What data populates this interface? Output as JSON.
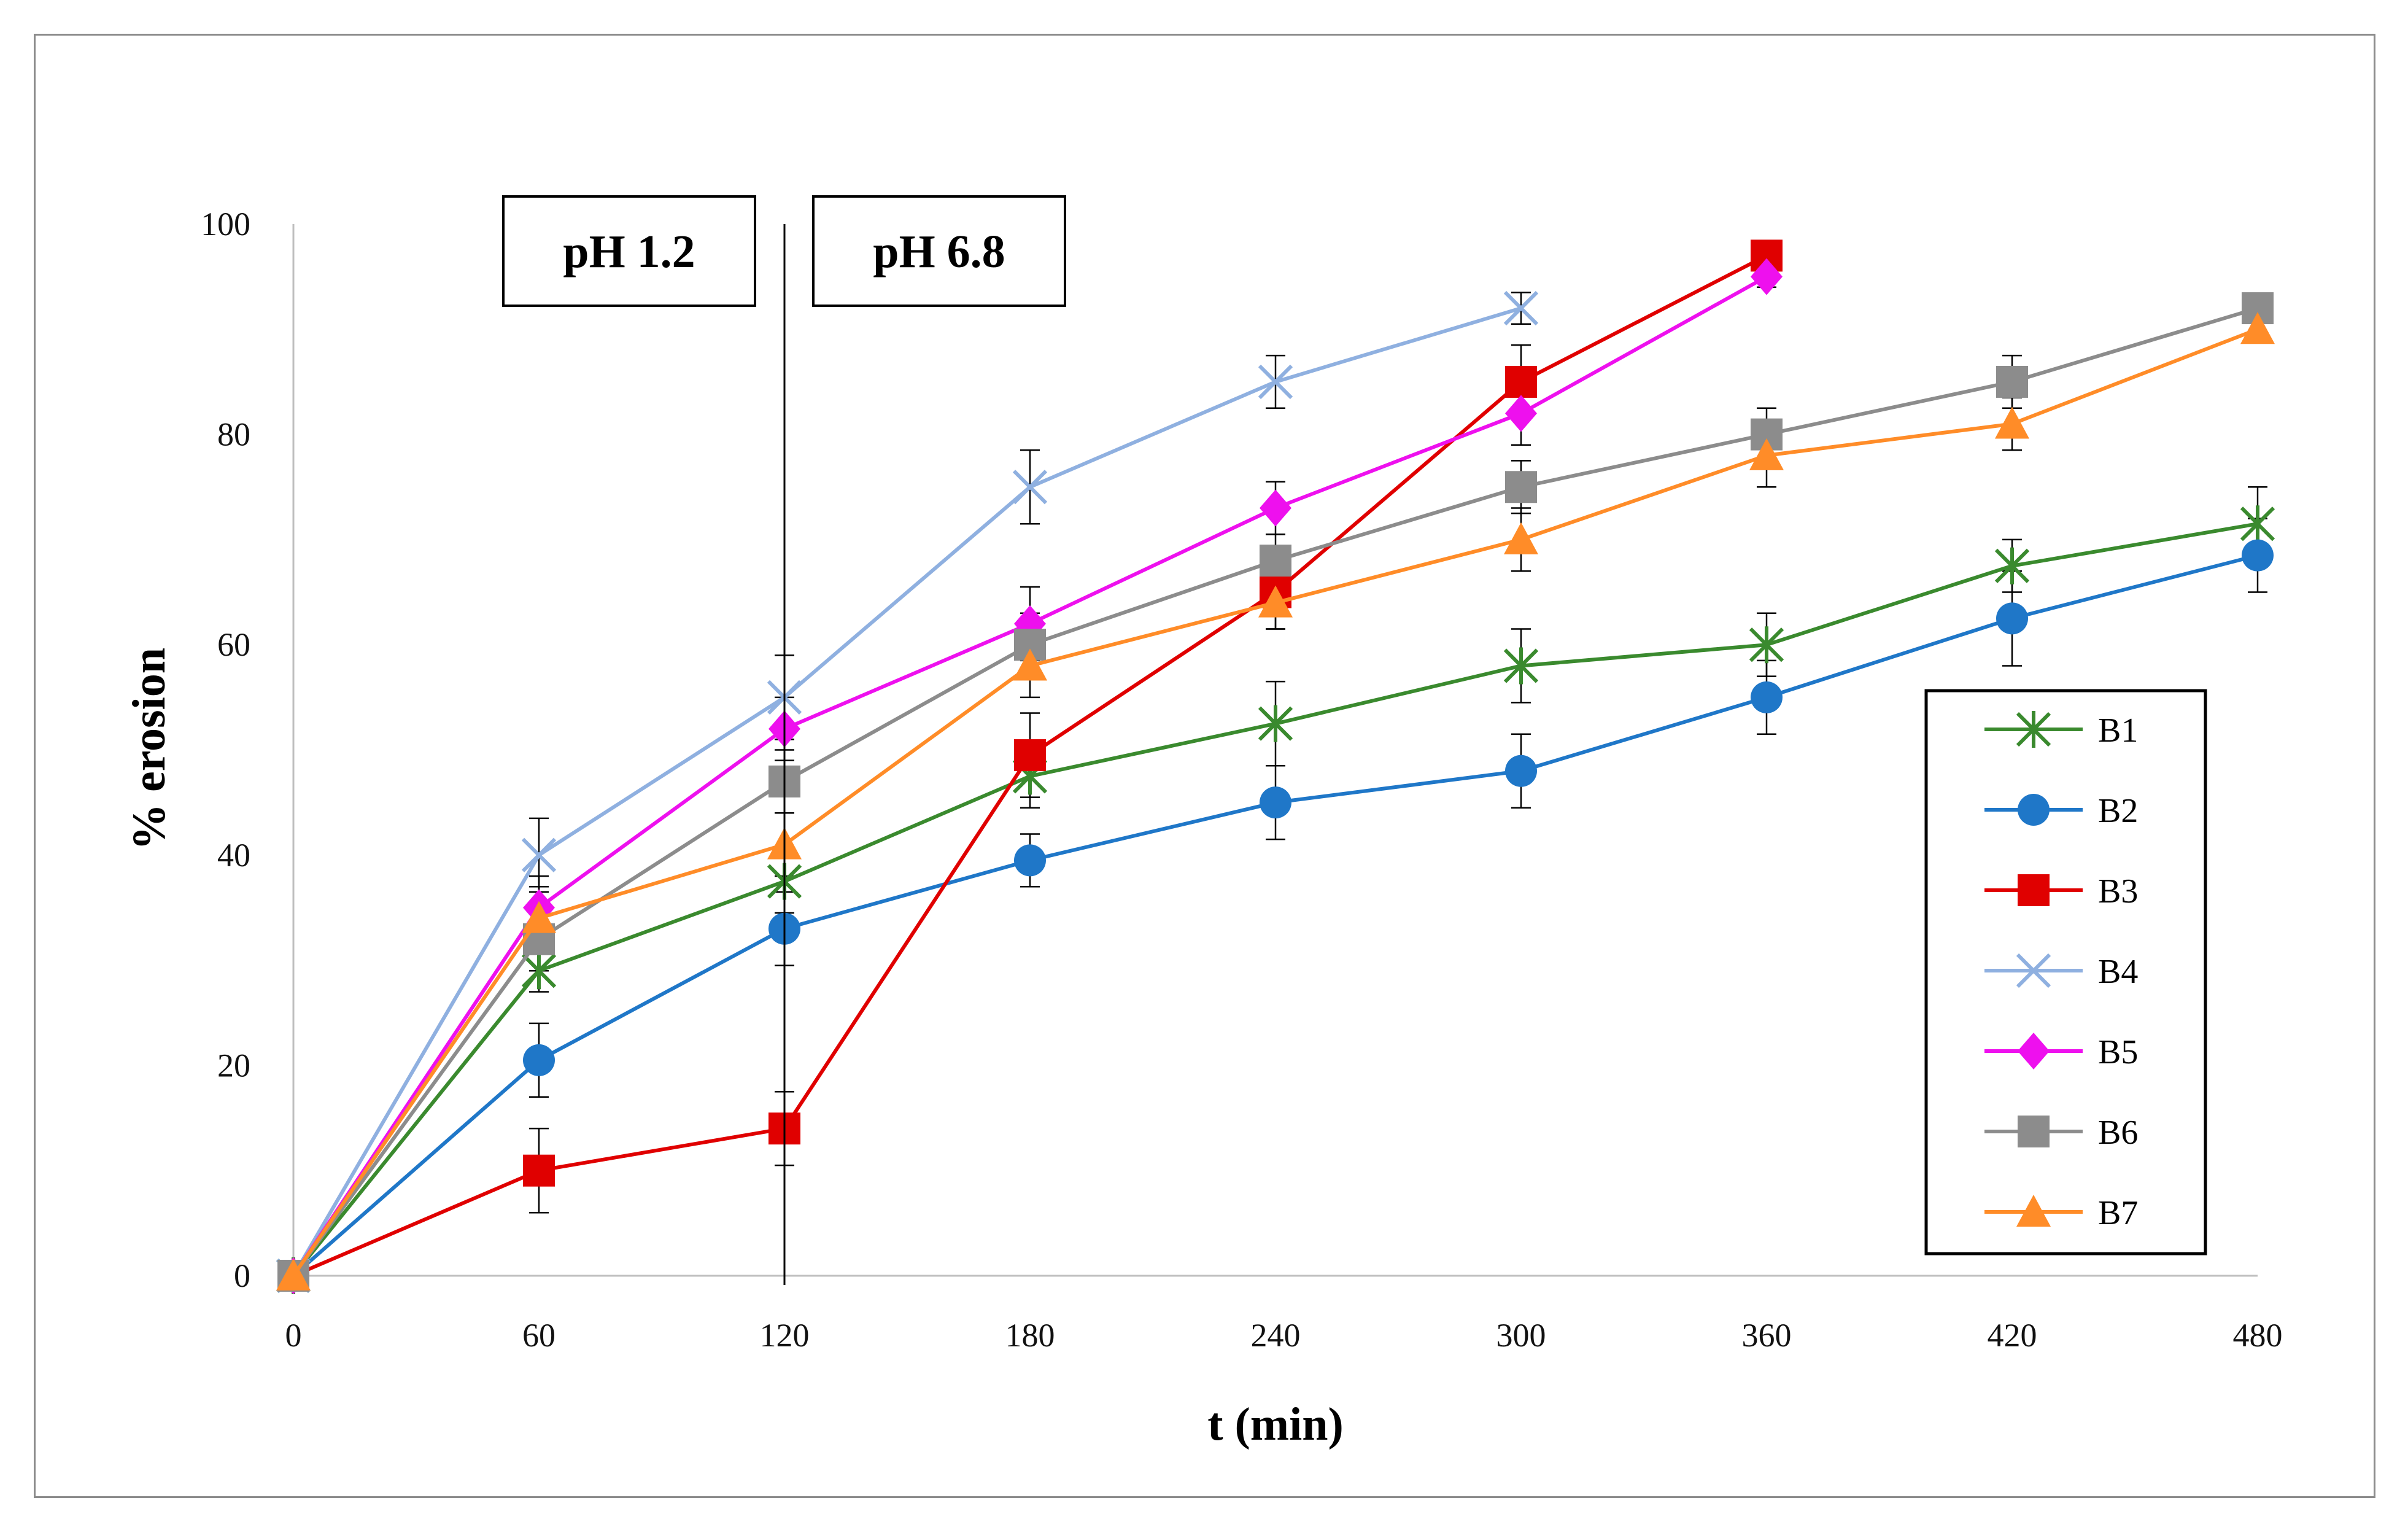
{
  "chart_data": {
    "type": "line",
    "title": "",
    "xlabel": "t (min)",
    "ylabel": "% erosion",
    "xlim": [
      0,
      480
    ],
    "ylim": [
      0,
      100
    ],
    "x_ticks": [
      0,
      60,
      120,
      180,
      240,
      300,
      360,
      420,
      480
    ],
    "y_ticks": [
      0,
      20,
      40,
      60,
      80,
      100
    ],
    "grid": false,
    "legend_position": "right",
    "annotations": [
      {
        "text": "pH 1.2",
        "side": "left-of-divider"
      },
      {
        "text": "pH 6.8",
        "side": "right-of-divider"
      }
    ],
    "divider_x": 120,
    "series": [
      {
        "name": "B1",
        "color": "#3a8a2e",
        "marker": "star",
        "x": [
          0,
          60,
          120,
          180,
          240,
          300,
          360,
          420,
          480
        ],
        "values": [
          0,
          29,
          37.5,
          47.5,
          52.5,
          58,
          60,
          67.5,
          71.5
        ],
        "errors": [
          0,
          2,
          3,
          3,
          4,
          3.5,
          3,
          2.5,
          3.5
        ]
      },
      {
        "name": "B2",
        "color": "#1f77c8",
        "marker": "circle",
        "x": [
          0,
          60,
          120,
          180,
          240,
          300,
          360,
          420,
          480
        ],
        "values": [
          0,
          20.5,
          33,
          39.5,
          45,
          48,
          55,
          62.5,
          68.5
        ],
        "errors": [
          0,
          3.5,
          3.5,
          2.5,
          3.5,
          3.5,
          3.5,
          4.5,
          3.5
        ]
      },
      {
        "name": "B3",
        "color": "#e00000",
        "marker": "square",
        "x": [
          0,
          60,
          120,
          180,
          240,
          300,
          360
        ],
        "values": [
          0,
          10,
          14,
          49.5,
          65,
          85,
          97
        ],
        "errors": [
          0,
          4,
          3.5,
          4,
          3.5,
          3.5,
          1
        ]
      },
      {
        "name": "B4",
        "color": "#8fb0e0",
        "marker": "x",
        "x": [
          0,
          60,
          120,
          180,
          240,
          300
        ],
        "values": [
          0,
          40,
          55,
          75,
          85,
          92
        ],
        "errors": [
          0,
          3.5,
          4,
          3.5,
          2.5,
          1.5
        ]
      },
      {
        "name": "B5",
        "color": "#ee10ee",
        "marker": "diamond",
        "x": [
          0,
          60,
          120,
          180,
          240,
          300,
          360
        ],
        "values": [
          0,
          35,
          52,
          62,
          73,
          82,
          95
        ],
        "errors": [
          0,
          3,
          3,
          3.5,
          2.5,
          3,
          1
        ]
      },
      {
        "name": "B6",
        "color": "#8c8c8c",
        "marker": "square",
        "x": [
          0,
          60,
          120,
          180,
          240,
          300,
          360,
          420,
          480
        ],
        "values": [
          0,
          32,
          47,
          60,
          68,
          75,
          80,
          85,
          92
        ],
        "errors": [
          0,
          3,
          3,
          3,
          2.5,
          2.5,
          2.5,
          2.5,
          1
        ]
      },
      {
        "name": "B7",
        "color": "#ff8c28",
        "marker": "triangle",
        "x": [
          0,
          60,
          120,
          180,
          240,
          300,
          360,
          420,
          480
        ],
        "values": [
          0,
          34,
          41,
          58,
          64,
          70,
          78,
          81,
          90
        ],
        "errors": [
          0,
          3,
          3,
          3,
          2.5,
          3,
          3,
          2.5,
          1
        ]
      }
    ]
  }
}
